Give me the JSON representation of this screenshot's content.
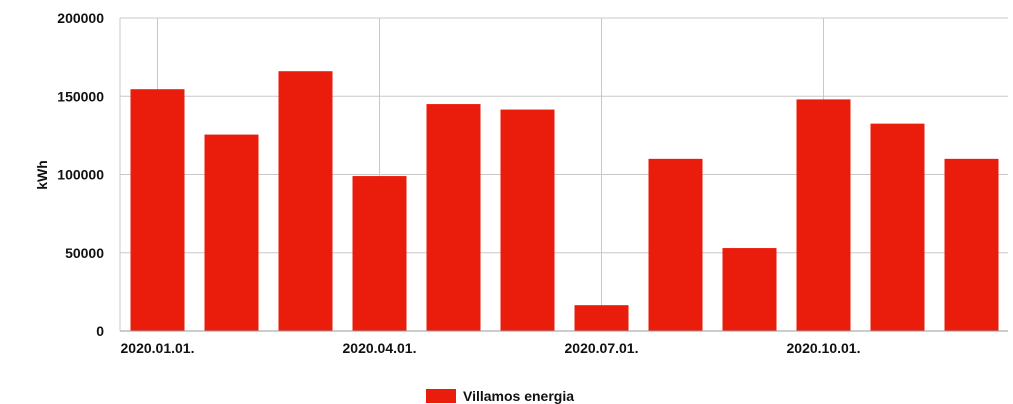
{
  "chart_data": {
    "type": "bar",
    "ylabel": "kWh",
    "ylim": [
      0,
      200000
    ],
    "y_ticks": [
      0,
      50000,
      100000,
      150000,
      200000
    ],
    "x_tick_labels": [
      {
        "label": "2020.01.01.",
        "at_index": 0
      },
      {
        "label": "2020.04.01.",
        "at_index": 3
      },
      {
        "label": "2020.07.01.",
        "at_index": 6
      },
      {
        "label": "2020.10.01.",
        "at_index": 9
      }
    ],
    "categories": [
      "2020-01",
      "2020-02",
      "2020-03",
      "2020-04",
      "2020-05",
      "2020-06",
      "2020-07",
      "2020-08",
      "2020-09",
      "2020-10",
      "2020-11",
      "2020-12"
    ],
    "series": [
      {
        "name": "Villamos energia",
        "color": "#ea1d0d",
        "values": [
          154500,
          125500,
          166000,
          99000,
          145000,
          141500,
          16500,
          110000,
          53000,
          148000,
          132500,
          110000
        ]
      }
    ],
    "grid": true,
    "legend_position": "bottom-center"
  }
}
